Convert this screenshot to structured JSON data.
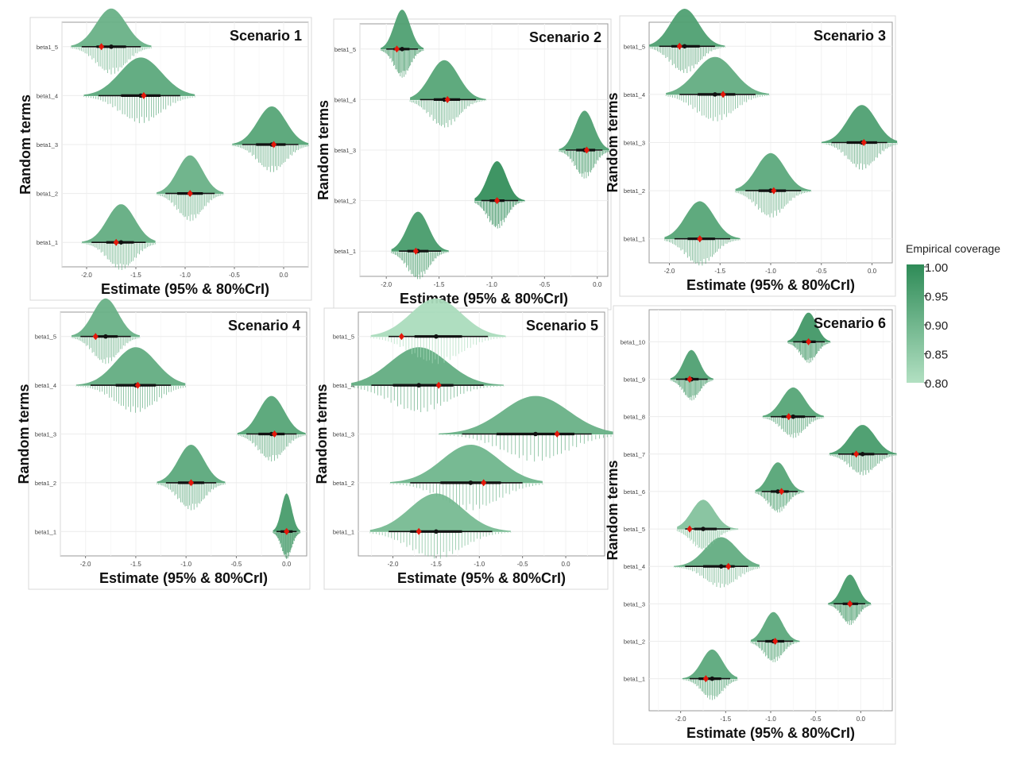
{
  "legend": {
    "title": "Empirical coverage",
    "range": [
      0.8,
      1.0
    ],
    "ticks": [
      "1.00",
      "0.95",
      "0.90",
      "0.85",
      "0.80"
    ],
    "low_color": "#b2e0c2",
    "high_color": "#2e8b57"
  },
  "axes": {
    "xlabel": "Estimate (95% & 80%CrI)",
    "ylabel": "Random terms"
  },
  "chart_data": [
    {
      "type": "density",
      "title": "Scenario 1",
      "xlim": [
        -2.25,
        0.25
      ],
      "xticks": [
        "-2.0",
        "-1.5",
        "-1.0",
        "-0.5",
        "0.0"
      ],
      "xtick_values": [
        -2.0,
        -1.5,
        -1.0,
        -0.5,
        0.0
      ],
      "categories": [
        "beta1_1",
        "beta1_2",
        "beta1_3",
        "beta1_4",
        "beta1_5"
      ],
      "series": [
        {
          "term": "beta1_1",
          "estimate": -1.65,
          "truth": -1.7,
          "ci95": [
            -1.95,
            -1.4
          ],
          "ci80": [
            -1.8,
            -1.52
          ],
          "coverage": 0.92
        },
        {
          "term": "beta1_2",
          "estimate": -0.95,
          "truth": -0.95,
          "ci95": [
            -1.2,
            -0.7
          ],
          "ci80": [
            -1.08,
            -0.82
          ],
          "coverage": 0.91
        },
        {
          "term": "beta1_3",
          "estimate": -0.12,
          "truth": -0.1,
          "ci95": [
            -0.42,
            0.15
          ],
          "ci80": [
            -0.28,
            0.02
          ],
          "coverage": 0.94
        },
        {
          "term": "beta1_4",
          "estimate": -1.45,
          "truth": -1.42,
          "ci95": [
            -1.88,
            -1.05
          ],
          "ci80": [
            -1.65,
            -1.25
          ],
          "coverage": 0.93
        },
        {
          "term": "beta1_5",
          "estimate": -1.75,
          "truth": -1.85,
          "ci95": [
            -2.05,
            -1.45
          ],
          "ci80": [
            -1.9,
            -1.6
          ],
          "coverage": 0.91
        }
      ]
    },
    {
      "type": "density",
      "title": "Scenario 2",
      "xlim": [
        -2.25,
        0.1
      ],
      "xticks": [
        "-2.0",
        "-1.5",
        "-1.0",
        "-0.5",
        "0.0"
      ],
      "xtick_values": [
        -2.0,
        -1.5,
        -1.0,
        -0.5,
        0.0
      ],
      "categories": [
        "beta1_1",
        "beta1_2",
        "beta1_3",
        "beta1_4",
        "beta1_5"
      ],
      "series": [
        {
          "term": "beta1_1",
          "estimate": -1.7,
          "truth": -1.72,
          "ci95": [
            -1.88,
            -1.48
          ],
          "ci80": [
            -1.8,
            -1.6
          ],
          "coverage": 0.96
        },
        {
          "term": "beta1_2",
          "estimate": -0.95,
          "truth": -0.95,
          "ci95": [
            -1.1,
            -0.75
          ],
          "ci80": [
            -1.02,
            -0.88
          ],
          "coverage": 0.99
        },
        {
          "term": "beta1_3",
          "estimate": -0.12,
          "truth": -0.1,
          "ci95": [
            -0.3,
            0.05
          ],
          "ci80": [
            -0.2,
            -0.02
          ],
          "coverage": 0.95
        },
        {
          "term": "beta1_4",
          "estimate": -1.45,
          "truth": -1.42,
          "ci95": [
            -1.68,
            -1.15
          ],
          "ci80": [
            -1.55,
            -1.3
          ],
          "coverage": 0.94
        },
        {
          "term": "beta1_5",
          "estimate": -1.85,
          "truth": -1.9,
          "ci95": [
            -2.0,
            -1.7
          ],
          "ci80": [
            -1.93,
            -1.78
          ],
          "coverage": 0.95
        }
      ]
    },
    {
      "type": "density",
      "title": "Scenario 3",
      "xlim": [
        -2.2,
        0.2
      ],
      "xticks": [
        "-2.0",
        "-1.5",
        "-1.0",
        "-0.5",
        "0.0"
      ],
      "xtick_values": [
        -2.0,
        -1.5,
        -1.0,
        -0.5,
        0.0
      ],
      "categories": [
        "beta1_1",
        "beta1_2",
        "beta1_3",
        "beta1_4",
        "beta1_5"
      ],
      "series": [
        {
          "term": "beta1_1",
          "estimate": -1.7,
          "truth": -1.7,
          "ci95": [
            -1.95,
            -1.4
          ],
          "ci80": [
            -1.82,
            -1.55
          ],
          "coverage": 0.94
        },
        {
          "term": "beta1_2",
          "estimate": -1.0,
          "truth": -0.97,
          "ci95": [
            -1.25,
            -0.7
          ],
          "ci80": [
            -1.12,
            -0.85
          ],
          "coverage": 0.93
        },
        {
          "term": "beta1_3",
          "estimate": -0.1,
          "truth": -0.08,
          "ci95": [
            -0.4,
            0.15
          ],
          "ci80": [
            -0.25,
            0.05
          ],
          "coverage": 0.95
        },
        {
          "term": "beta1_4",
          "estimate": -1.55,
          "truth": -1.47,
          "ci95": [
            -1.9,
            -1.15
          ],
          "ci80": [
            -1.72,
            -1.35
          ],
          "coverage": 0.92
        },
        {
          "term": "beta1_5",
          "estimate": -1.85,
          "truth": -1.9,
          "ci95": [
            -2.1,
            -1.55
          ],
          "ci80": [
            -1.98,
            -1.7
          ],
          "coverage": 0.95
        }
      ]
    },
    {
      "type": "density",
      "title": "Scenario 4",
      "xlim": [
        -2.25,
        0.2
      ],
      "xticks": [
        "-2.0",
        "-1.5",
        "-1.0",
        "-0.5",
        "0.0"
      ],
      "xtick_values": [
        -2.0,
        -1.5,
        -1.0,
        -0.5,
        0.0
      ],
      "categories": [
        "beta1_1",
        "beta1_2",
        "beta1_3",
        "beta1_4",
        "beta1_5"
      ],
      "series": [
        {
          "term": "beta1_1",
          "estimate": 0.0,
          "truth": 0.0,
          "ci95": [
            -0.1,
            0.1
          ],
          "ci80": [
            -0.06,
            0.06
          ],
          "coverage": 0.96
        },
        {
          "term": "beta1_2",
          "estimate": -0.95,
          "truth": -0.95,
          "ci95": [
            -1.2,
            -0.7
          ],
          "ci80": [
            -1.08,
            -0.82
          ],
          "coverage": 0.93
        },
        {
          "term": "beta1_3",
          "estimate": -0.15,
          "truth": -0.12,
          "ci95": [
            -0.4,
            0.1
          ],
          "ci80": [
            -0.28,
            -0.02
          ],
          "coverage": 0.94
        },
        {
          "term": "beta1_4",
          "estimate": -1.5,
          "truth": -1.48,
          "ci95": [
            -1.95,
            -1.15
          ],
          "ci80": [
            -1.7,
            -1.3
          ],
          "coverage": 0.92
        },
        {
          "term": "beta1_5",
          "estimate": -1.8,
          "truth": -1.9,
          "ci95": [
            -2.05,
            -1.55
          ],
          "ci80": [
            -1.92,
            -1.68
          ],
          "coverage": 0.91
        }
      ]
    },
    {
      "type": "density",
      "title": "Scenario 5",
      "xlim": [
        -2.4,
        0.45
      ],
      "xticks": [
        "-2.0",
        "-1.5",
        "-1.0",
        "-0.5",
        "0.0"
      ],
      "xtick_values": [
        -2.0,
        -1.5,
        -1.0,
        -0.5,
        0.0
      ],
      "categories": [
        "beta1_1",
        "beta1_2",
        "beta1_3",
        "beta1_4",
        "beta1_5"
      ],
      "series": [
        {
          "term": "beta1_1",
          "estimate": -1.5,
          "truth": -1.7,
          "ci95": [
            -2.05,
            -0.85
          ],
          "ci80": [
            -1.8,
            -1.2
          ],
          "coverage": 0.89
        },
        {
          "term": "beta1_2",
          "estimate": -1.1,
          "truth": -0.95,
          "ci95": [
            -1.8,
            -0.5
          ],
          "ci80": [
            -1.45,
            -0.75
          ],
          "coverage": 0.9
        },
        {
          "term": "beta1_3",
          "estimate": -0.35,
          "truth": -0.1,
          "ci95": [
            -1.2,
            0.3
          ],
          "ci80": [
            -0.8,
            0.1
          ],
          "coverage": 0.91
        },
        {
          "term": "beta1_4",
          "estimate": -1.7,
          "truth": -1.47,
          "ci95": [
            -2.25,
            -0.95
          ],
          "ci80": [
            -2.0,
            -1.3
          ],
          "coverage": 0.92
        },
        {
          "term": "beta1_5",
          "estimate": -1.5,
          "truth": -1.9,
          "ci95": [
            -2.05,
            -0.9
          ],
          "ci80": [
            -1.75,
            -1.2
          ],
          "coverage": 0.81
        }
      ]
    },
    {
      "type": "density",
      "title": "Scenario 6",
      "xlim": [
        -2.35,
        0.35
      ],
      "xticks": [
        "-2.0",
        "-1.5",
        "-1.0",
        "-0.5",
        "0.0"
      ],
      "xtick_values": [
        -2.0,
        -1.5,
        -1.0,
        -0.5,
        0.0
      ],
      "categories": [
        "beta1_1",
        "beta1_2",
        "beta1_3",
        "beta1_4",
        "beta1_5",
        "beta1_6",
        "beta1_7",
        "beta1_8",
        "beta1_9",
        "beta1_10"
      ],
      "series": [
        {
          "term": "beta1_1",
          "estimate": -1.65,
          "truth": -1.72,
          "ci95": [
            -1.9,
            -1.45
          ],
          "ci80": [
            -1.8,
            -1.55
          ],
          "coverage": 0.93
        },
        {
          "term": "beta1_2",
          "estimate": -0.97,
          "truth": -0.95,
          "ci95": [
            -1.15,
            -0.75
          ],
          "ci80": [
            -1.06,
            -0.85
          ],
          "coverage": 0.93
        },
        {
          "term": "beta1_3",
          "estimate": -0.12,
          "truth": -0.12,
          "ci95": [
            -0.3,
            0.05
          ],
          "ci80": [
            -0.2,
            -0.03
          ],
          "coverage": 0.96
        },
        {
          "term": "beta1_4",
          "estimate": -1.55,
          "truth": -1.47,
          "ci95": [
            -1.95,
            -1.25
          ],
          "ci80": [
            -1.75,
            -1.4
          ],
          "coverage": 0.92
        },
        {
          "term": "beta1_5",
          "estimate": -1.75,
          "truth": -1.9,
          "ci95": [
            -1.95,
            -1.45
          ],
          "ci80": [
            -1.85,
            -1.6
          ],
          "coverage": 0.87
        },
        {
          "term": "beta1_6",
          "estimate": -0.92,
          "truth": -0.88,
          "ci95": [
            -1.1,
            -0.7
          ],
          "ci80": [
            -1.0,
            -0.8
          ],
          "coverage": 0.94
        },
        {
          "term": "beta1_7",
          "estimate": 0.02,
          "truth": -0.05,
          "ci95": [
            -0.25,
            0.3
          ],
          "ci80": [
            -0.1,
            0.15
          ],
          "coverage": 0.96
        },
        {
          "term": "beta1_8",
          "estimate": -0.75,
          "truth": -0.8,
          "ci95": [
            -1.0,
            -0.5
          ],
          "ci80": [
            -0.88,
            -0.62
          ],
          "coverage": 0.94
        },
        {
          "term": "beta1_9",
          "estimate": -1.88,
          "truth": -1.9,
          "ci95": [
            -2.05,
            -1.7
          ],
          "ci80": [
            -1.95,
            -1.8
          ],
          "coverage": 0.95
        },
        {
          "term": "beta1_10",
          "estimate": -0.58,
          "truth": -0.58,
          "ci95": [
            -0.75,
            -0.4
          ],
          "ci80": [
            -0.65,
            -0.5
          ],
          "coverage": 0.97
        }
      ]
    }
  ]
}
